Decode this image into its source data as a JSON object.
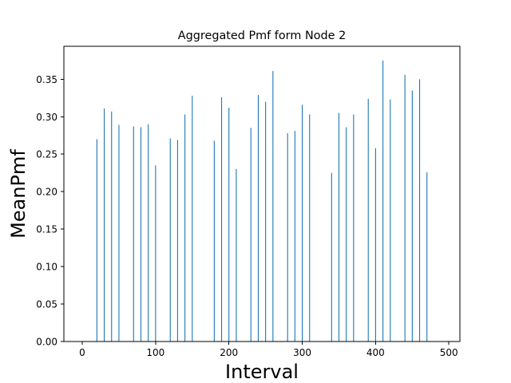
{
  "chart_data": {
    "type": "bar",
    "title": "Aggregated Pmf form Node 2",
    "xlabel": "Interval",
    "ylabel": "MeanPmf",
    "x": [
      20,
      30,
      40,
      50,
      70,
      80,
      90,
      100,
      120,
      130,
      140,
      150,
      180,
      190,
      200,
      210,
      230,
      240,
      250,
      260,
      280,
      290,
      300,
      310,
      340,
      350,
      360,
      370,
      390,
      400,
      410,
      420,
      440,
      450,
      460,
      470
    ],
    "values": [
      0.27,
      0.311,
      0.307,
      0.289,
      0.287,
      0.286,
      0.29,
      0.235,
      0.271,
      0.269,
      0.303,
      0.328,
      0.268,
      0.326,
      0.312,
      0.23,
      0.285,
      0.329,
      0.32,
      0.361,
      0.278,
      0.281,
      0.316,
      0.303,
      0.225,
      0.305,
      0.286,
      0.303,
      0.324,
      0.258,
      0.375,
      0.323,
      0.356,
      0.335,
      0.35,
      0.226
    ],
    "xlim": [
      -25,
      515
    ],
    "ylim": [
      0,
      0.394
    ],
    "xticks": [
      0,
      100,
      200,
      300,
      400,
      500
    ],
    "xtick_labels": [
      "0",
      "100",
      "200",
      "300",
      "400",
      "500"
    ],
    "yticks": [
      0,
      0.05,
      0.1,
      0.15,
      0.2,
      0.25,
      0.3,
      0.35
    ],
    "ytick_labels": [
      "0.00",
      "0.05",
      "0.10",
      "0.15",
      "0.20",
      "0.25",
      "0.30",
      "0.35"
    ],
    "bar_color": "#1f77b4",
    "grid": false,
    "legend": "none"
  }
}
